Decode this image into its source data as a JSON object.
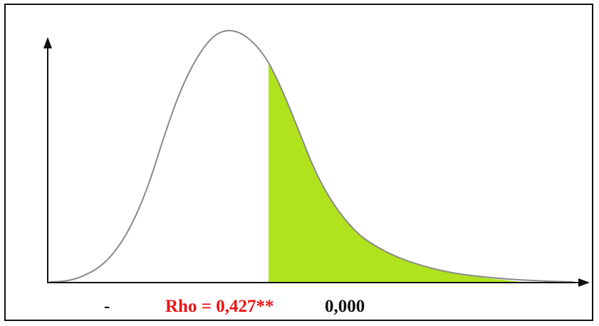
{
  "diagram": {
    "caption": {
      "dash": "-",
      "rho": "Rho = 0,427**",
      "p_value": "0,000"
    }
  },
  "colors": {
    "rho_text": "#ee1111",
    "shaded_region": "#b0e21e",
    "curve": "#8a8a8a",
    "axis": "#111111"
  }
}
